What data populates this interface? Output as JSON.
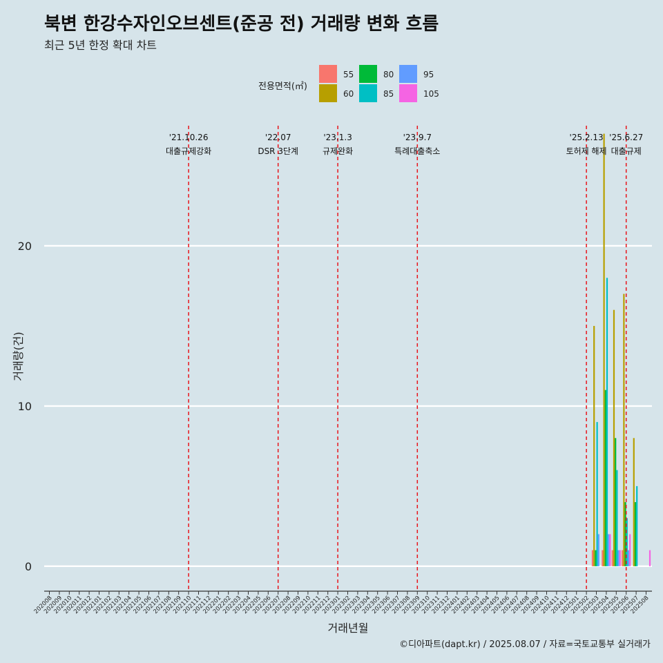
{
  "title": "북변 한강수자인오브센트(준공 전) 거래량 변화 흐름",
  "subtitle": "최근 5년 한정 확대 차트",
  "caption": "©디아파트(dapt.kr) / 2025.08.07 / 자료=국토교통부 실거래가",
  "colors": {
    "background": "#d6e4ea",
    "gridline": "#ffffff",
    "event_line": "#e8141b",
    "axis": "#333333"
  },
  "chart_data": {
    "type": "bar",
    "xlabel": "거래년월",
    "ylabel": "거래량(건)",
    "ylim": [
      -1.3,
      27.5
    ],
    "yticks": [
      0,
      10,
      20
    ],
    "grid": "horizontal",
    "legend": {
      "title": "전용면적(㎡)",
      "placement": "top-center",
      "entries": [
        {
          "name": "55",
          "color": "#f8766d"
        },
        {
          "name": "60",
          "color": "#b79f00"
        },
        {
          "name": "80",
          "color": "#00ba38"
        },
        {
          "name": "85",
          "color": "#00bfc4"
        },
        {
          "name": "95",
          "color": "#619cff"
        },
        {
          "name": "105",
          "color": "#f564e3"
        }
      ]
    },
    "categories": [
      "202008",
      "202009",
      "202010",
      "202011",
      "202012",
      "202101",
      "202102",
      "202103",
      "202104",
      "202105",
      "202106",
      "202107",
      "202108",
      "202109",
      "202110",
      "202111",
      "202112",
      "202201",
      "202202",
      "202203",
      "202204",
      "202205",
      "202206",
      "202207",
      "202208",
      "202209",
      "202210",
      "202211",
      "202212",
      "202301",
      "202302",
      "202303",
      "202304",
      "202305",
      "202306",
      "202307",
      "202308",
      "202309",
      "202310",
      "202311",
      "202312",
      "202401",
      "202402",
      "202403",
      "202404",
      "202405",
      "202406",
      "202407",
      "202408",
      "202409",
      "202410",
      "202411",
      "202412",
      "202501",
      "202502",
      "202503",
      "202504",
      "202505",
      "202506",
      "202507",
      "202508"
    ],
    "series": [
      {
        "name": "55",
        "data": [
          [
            "202503",
            1
          ],
          [
            "202504",
            1
          ],
          [
            "202505",
            1
          ],
          [
            "202506",
            1
          ]
        ]
      },
      {
        "name": "60",
        "data": [
          [
            "202503",
            15
          ],
          [
            "202504",
            27
          ],
          [
            "202505",
            16
          ],
          [
            "202506",
            17
          ],
          [
            "202507",
            8
          ]
        ]
      },
      {
        "name": "80",
        "data": [
          [
            "202503",
            1
          ],
          [
            "202504",
            11
          ],
          [
            "202505",
            8
          ],
          [
            "202506",
            4
          ],
          [
            "202507",
            4
          ]
        ]
      },
      {
        "name": "85",
        "data": [
          [
            "202503",
            9
          ],
          [
            "202504",
            18
          ],
          [
            "202505",
            6
          ],
          [
            "202506",
            3
          ],
          [
            "202507",
            5
          ]
        ]
      },
      {
        "name": "95",
        "data": [
          [
            "202503",
            2
          ],
          [
            "202504",
            2
          ],
          [
            "202505",
            1
          ],
          [
            "202506",
            1
          ]
        ]
      },
      {
        "name": "105",
        "data": [
          [
            "202504",
            2
          ],
          [
            "202505",
            1
          ],
          [
            "202506",
            2
          ],
          [
            "202508",
            1
          ]
        ]
      }
    ],
    "events": [
      {
        "date": "202110",
        "label_line1": "'21.10.26",
        "label_line2": "대출규제강화"
      },
      {
        "date": "202207",
        "label_line1": "'22.07",
        "label_line2": "DSR 3단계"
      },
      {
        "date": "202301",
        "label_line1": "'23.1.3",
        "label_line2": "규제완화"
      },
      {
        "date": "202309",
        "label_line1": "'23.9.7",
        "label_line2": "특례대출축소"
      },
      {
        "date": "202502",
        "label_line1": "'25.2.13",
        "label_line2": "토허제 해제"
      },
      {
        "date": "202506",
        "label_line1": "'25.6.27",
        "label_line2": "대출규제"
      }
    ]
  }
}
